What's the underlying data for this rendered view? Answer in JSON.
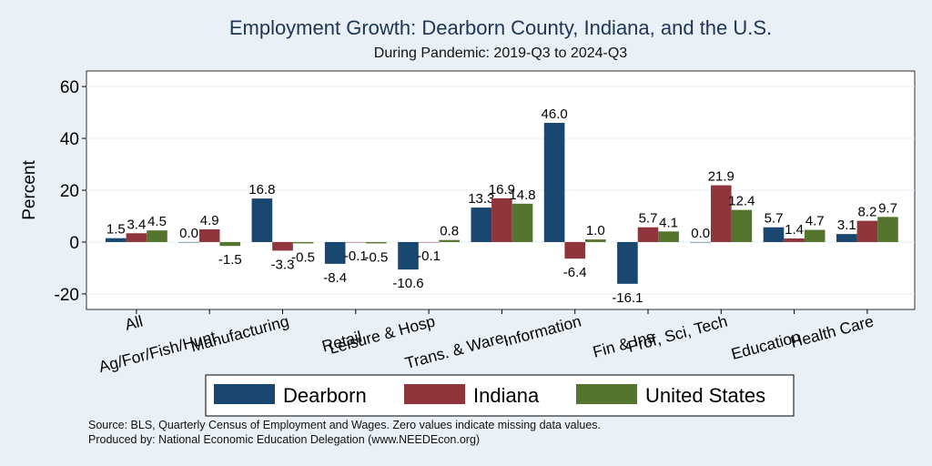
{
  "title": "Employment Growth: Dearborn County, Indiana, and the U.S.",
  "subtitle": "During Pandemic: 2019-Q3 to 2024-Q3",
  "source_line": "Source: BLS, Quarterly Census of Employment and Wages. Zero values indicate missing data values.",
  "produced_line": "Produced by: National Economic Education Delegation (www.NEEDEcon.org)",
  "chart_data": {
    "type": "bar",
    "ylabel": "Percent",
    "xlabel": "",
    "ylim": [
      -26,
      66
    ],
    "yticks": [
      -20,
      0,
      20,
      40,
      60
    ],
    "grid": true,
    "legend_position": "bottom",
    "categories": [
      "All",
      "Ag/For/Fish/Hunt",
      "Manufacturing",
      "Retail",
      "Leisure & Hosp",
      "Trans. & Ware.",
      "Information",
      "Fin & Ins",
      "Prof, Sci, Tech",
      "Education",
      "Health Care"
    ],
    "series": [
      {
        "name": "Dearborn",
        "color": "#1a476f",
        "values": [
          1.5,
          0.0,
          16.8,
          -8.4,
          -10.6,
          13.3,
          46.0,
          -16.1,
          0.0,
          5.7,
          3.1
        ]
      },
      {
        "name": "Indiana",
        "color": "#90353b",
        "values": [
          3.4,
          4.9,
          -3.3,
          -0.1,
          -0.1,
          16.9,
          -6.4,
          5.7,
          21.9,
          1.4,
          8.2
        ]
      },
      {
        "name": "United States",
        "color": "#55752f",
        "values": [
          4.5,
          -1.5,
          -0.5,
          -0.5,
          0.8,
          14.8,
          1.0,
          4.1,
          12.4,
          4.7,
          9.7
        ]
      }
    ]
  }
}
